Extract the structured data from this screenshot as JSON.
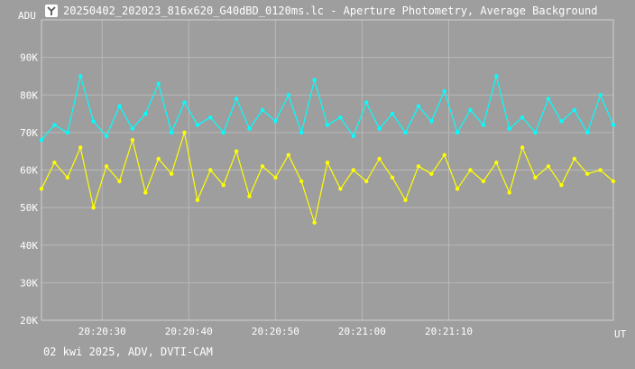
{
  "window": {
    "title": "20250402_202023_816x620_G40dBD_0120ms.lc - Aperture Photometry, Average Background",
    "footer": "02 kwi 2025, ADV, DVTI-CAM"
  },
  "chart_data": {
    "type": "line",
    "title": "20250402_202023_816x620_G40dBD_0120ms.lc - Aperture Photometry, Average Background",
    "ylabel": "ADU",
    "xlabel": "UT",
    "ylim": [
      20000,
      100000
    ],
    "xlim": [
      0,
      66
    ],
    "grid": true,
    "y_ticks": [
      {
        "value": 20000,
        "label": "20K"
      },
      {
        "value": 30000,
        "label": "30K"
      },
      {
        "value": 40000,
        "label": "40K"
      },
      {
        "value": 50000,
        "label": "50K"
      },
      {
        "value": 60000,
        "label": "60K"
      },
      {
        "value": 70000,
        "label": "70K"
      },
      {
        "value": 80000,
        "label": "80K"
      },
      {
        "value": 90000,
        "label": "90K"
      }
    ],
    "x_ticks": [
      {
        "value": 7,
        "label": "20:20:30"
      },
      {
        "value": 17,
        "label": "20:20:40"
      },
      {
        "value": 27,
        "label": "20:20:50"
      },
      {
        "value": 37,
        "label": "20:21:00"
      },
      {
        "value": 47,
        "label": "20:21:10"
      }
    ],
    "series": [
      {
        "color": "#00ffff",
        "x": [
          0.0,
          1.5,
          3.0,
          4.5,
          6.0,
          7.5,
          9.0,
          10.5,
          12.0,
          13.5,
          15.0,
          16.5,
          18.0,
          19.5,
          21.0,
          22.5,
          24.0,
          25.5,
          27.0,
          28.5,
          30.0,
          31.5,
          33.0,
          34.5,
          36.0,
          37.5,
          39.0,
          40.5,
          42.0,
          43.5,
          45.0,
          46.5,
          48.0,
          49.5,
          51.0,
          52.5,
          54.0,
          55.5,
          57.0,
          58.5,
          60.0,
          61.5,
          63.0,
          64.5,
          66.0
        ],
        "y": [
          68000,
          72000,
          70000,
          85000,
          73000,
          69000,
          77000,
          71000,
          75000,
          83000,
          70000,
          78000,
          72000,
          74000,
          70000,
          79000,
          71000,
          76000,
          73000,
          80000,
          70000,
          84000,
          72000,
          74000,
          69000,
          78000,
          71000,
          75000,
          70000,
          77000,
          73000,
          81000,
          70000,
          76000,
          72000,
          85000,
          71000,
          74000,
          70000,
          79000,
          73000,
          76000,
          70000,
          80000,
          72000
        ]
      },
      {
        "color": "#ffff00",
        "x": [
          0.0,
          1.5,
          3.0,
          4.5,
          6.0,
          7.5,
          9.0,
          10.5,
          12.0,
          13.5,
          15.0,
          16.5,
          18.0,
          19.5,
          21.0,
          22.5,
          24.0,
          25.5,
          27.0,
          28.5,
          30.0,
          31.5,
          33.0,
          34.5,
          36.0,
          37.5,
          39.0,
          40.5,
          42.0,
          43.5,
          45.0,
          46.5,
          48.0,
          49.5,
          51.0,
          52.5,
          54.0,
          55.5,
          57.0,
          58.5,
          60.0,
          61.5,
          63.0,
          64.5,
          66.0
        ],
        "y": [
          55000,
          62000,
          58000,
          66000,
          50000,
          61000,
          57000,
          68000,
          54000,
          63000,
          59000,
          70000,
          52000,
          60000,
          56000,
          65000,
          53000,
          61000,
          58000,
          64000,
          57000,
          46000,
          62000,
          55000,
          60000,
          57000,
          63000,
          58000,
          52000,
          61000,
          59000,
          64000,
          55000,
          60000,
          57000,
          62000,
          54000,
          66000,
          58000,
          61000,
          56000,
          63000,
          59000,
          60000,
          57000
        ]
      }
    ]
  }
}
